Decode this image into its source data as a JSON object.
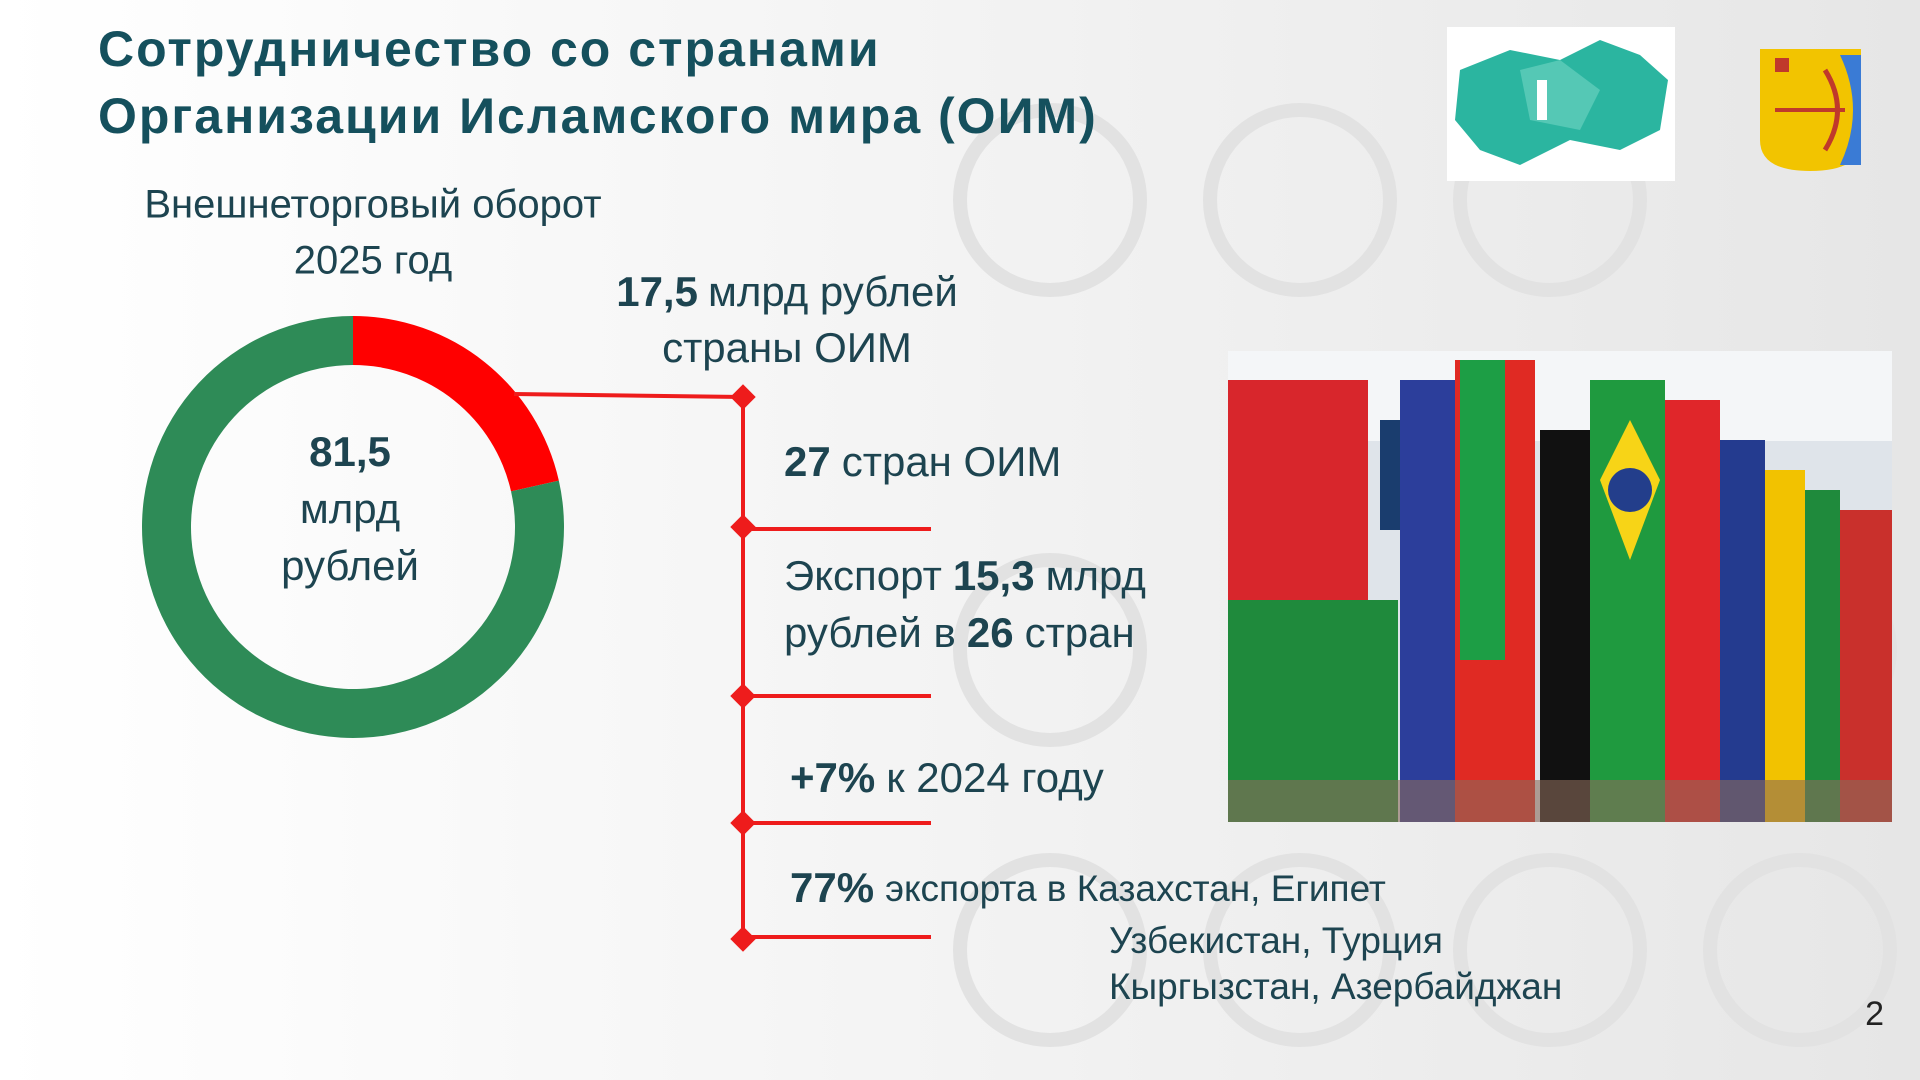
{
  "header": {
    "title_lines": [
      "Сотрудничество со странами",
      "Организации Исламского мира (ОИМ)"
    ]
  },
  "chart_data": {
    "type": "donut",
    "title": "Внешнеторговый оборот",
    "subtitle": "2025 год",
    "total": {
      "value": 81.5,
      "label": "81,5"
    },
    "total_unit_lines": [
      "млрд",
      "рублей"
    ],
    "categories": [
      "страны ОИМ",
      null
    ],
    "values": [
      17.5,
      64
    ],
    "value_labels": [
      "17,5",
      null
    ],
    "value_unit": "млрд рублей",
    "colors": [
      "#ff0000",
      "#2e8b57"
    ]
  },
  "facts": [
    {
      "lines": [
        [
          {
            "text": "27",
            "bold": true
          },
          {
            "text": "стран ОИМ"
          }
        ]
      ]
    },
    {
      "lines": [
        [
          {
            "text": "Экспорт"
          },
          {
            "text": "15,3",
            "bold": true
          },
          {
            "text": "млрд"
          }
        ],
        [
          {
            "text": "рублей в"
          },
          {
            "text": "26",
            "bold": true
          },
          {
            "text": "стран"
          }
        ]
      ]
    },
    {
      "lines": [
        [
          {
            "text": "+7%",
            "bold": true
          },
          {
            "text": "к 2024 году"
          }
        ]
      ]
    },
    {
      "lines": [
        [
          {
            "text": "77%",
            "bold": true
          },
          {
            "text": "экспорта в Казахстан, Египет"
          }
        ]
      ],
      "continuation": [
        "Узбекистан, Турция",
        "Кыргызстан,  Азербайджан"
      ]
    }
  ],
  "page_number": 2
}
